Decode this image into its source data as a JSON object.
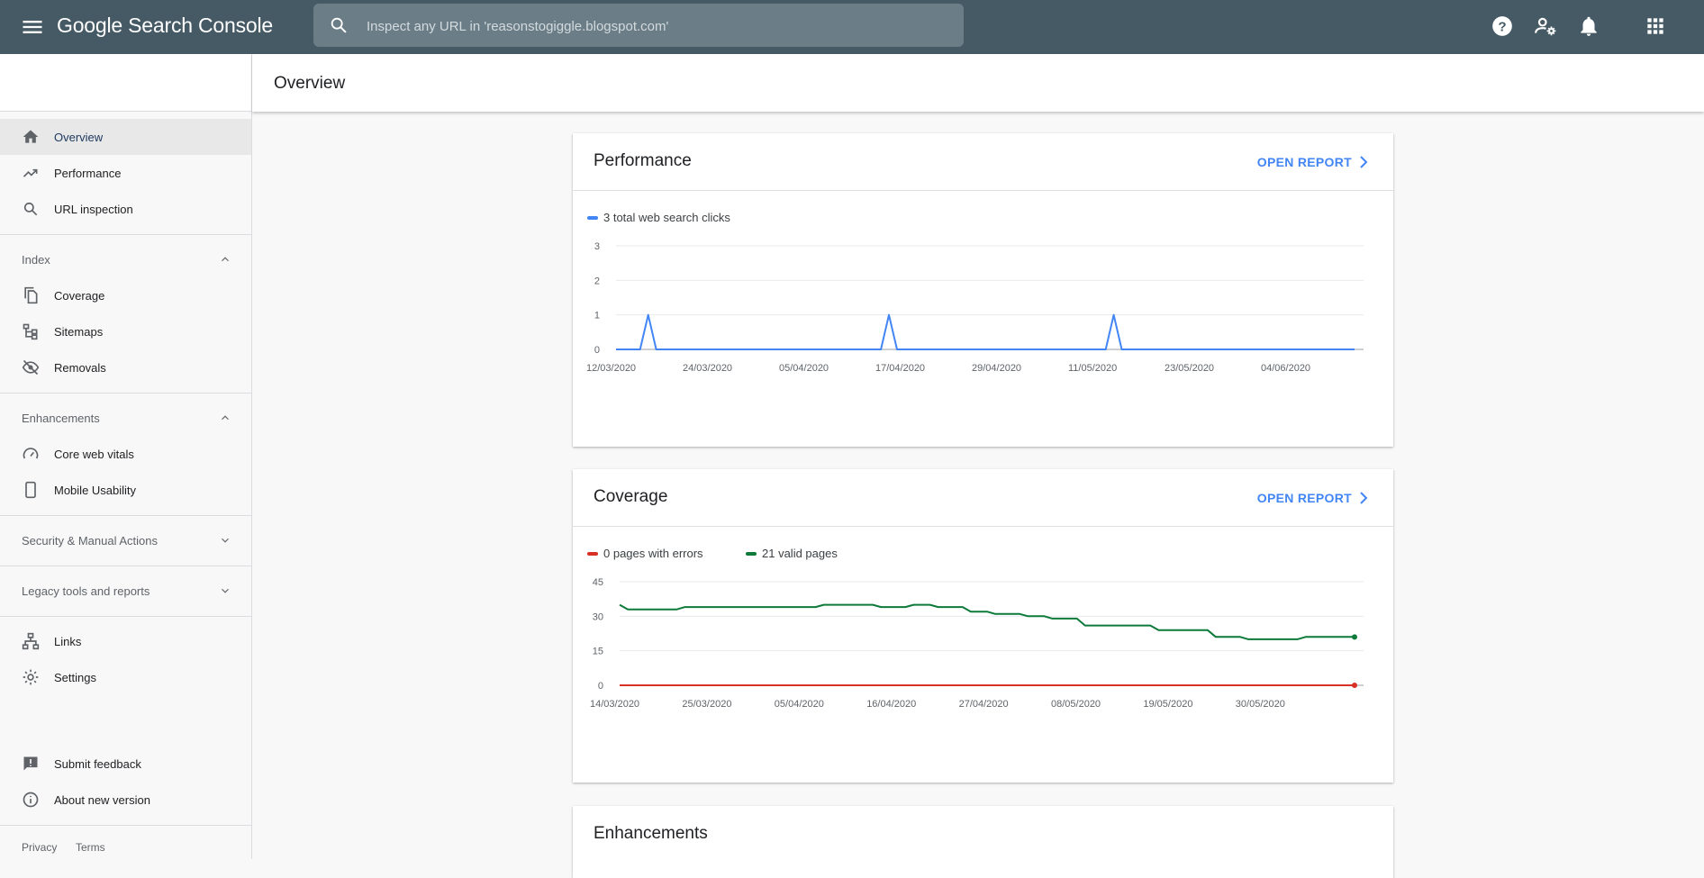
{
  "header": {
    "logo": "Google Search Console",
    "search_placeholder": "Inspect any URL in 'reasonstogiggle.blogspot.com'",
    "icons": [
      "menu-icon",
      "search-icon",
      "help-icon",
      "manage-users-icon",
      "notifications-icon",
      "apps-icon"
    ]
  },
  "sidebar": {
    "top_items": [
      {
        "label": "Overview",
        "icon": "home-icon",
        "active": true
      },
      {
        "label": "Performance",
        "icon": "trending-up-icon"
      },
      {
        "label": "URL inspection",
        "icon": "search-icon"
      }
    ],
    "index": {
      "label": "Index",
      "items": [
        {
          "label": "Coverage",
          "icon": "file-copy-icon"
        },
        {
          "label": "Sitemaps",
          "icon": "sitemap-icon"
        },
        {
          "label": "Removals",
          "icon": "visibility-off-icon"
        }
      ]
    },
    "enhancements": {
      "label": "Enhancements",
      "items": [
        {
          "label": "Core web vitals",
          "icon": "speed-icon"
        },
        {
          "label": "Mobile Usability",
          "icon": "smartphone-icon"
        }
      ]
    },
    "security_label": "Security & Manual Actions",
    "legacy_label": "Legacy tools and reports",
    "bottom_items": [
      {
        "label": "Links",
        "icon": "links-icon"
      },
      {
        "label": "Settings",
        "icon": "gear-icon"
      }
    ],
    "footer_items": [
      {
        "label": "Submit feedback",
        "icon": "feedback-icon"
      },
      {
        "label": "About new version",
        "icon": "info-icon"
      }
    ],
    "footer_links": [
      "Privacy",
      "Terms"
    ]
  },
  "page": {
    "title": "Overview"
  },
  "performance_card": {
    "title": "Performance",
    "open_report": "OPEN REPORT",
    "legend": [
      {
        "label": "3 total web search clicks",
        "color": "#4285f4"
      }
    ]
  },
  "coverage_card": {
    "title": "Coverage",
    "open_report": "OPEN REPORT",
    "legend": [
      {
        "label": "0 pages with errors",
        "color": "#d93025"
      },
      {
        "label": "21 valid pages",
        "color": "#0d7a3a"
      }
    ]
  },
  "enhancements_card": {
    "title": "Enhancements"
  },
  "chart_data": [
    {
      "type": "line",
      "title": "",
      "xlabel": "",
      "ylabel": "",
      "x_range": [
        "12/03/2020",
        "12/06/2020"
      ],
      "x_tick_labels": [
        "12/03/2020",
        "24/03/2020",
        "05/04/2020",
        "17/04/2020",
        "29/04/2020",
        "11/05/2020",
        "23/05/2020",
        "04/06/2020"
      ],
      "ylim": [
        0,
        3
      ],
      "y_ticks": [
        0,
        1,
        2,
        3
      ],
      "grid": true,
      "series": [
        {
          "name": "3 total web search clicks",
          "color": "#4285f4",
          "points": [
            [
              "12/03/2020",
              0
            ],
            [
              "15/03/2020",
              0
            ],
            [
              "16/03/2020",
              1
            ],
            [
              "17/03/2020",
              0
            ],
            [
              "14/04/2020",
              0
            ],
            [
              "15/04/2020",
              1
            ],
            [
              "16/04/2020",
              0
            ],
            [
              "12/05/2020",
              0
            ],
            [
              "13/05/2020",
              1
            ],
            [
              "14/05/2020",
              0
            ],
            [
              "12/06/2020",
              0
            ]
          ]
        }
      ]
    },
    {
      "type": "line",
      "title": "",
      "xlabel": "",
      "ylabel": "",
      "x_range": [
        "14/03/2020",
        "12/06/2020"
      ],
      "x_tick_labels": [
        "14/03/2020",
        "25/03/2020",
        "05/04/2020",
        "16/04/2020",
        "27/04/2020",
        "08/05/2020",
        "19/05/2020",
        "30/05/2020"
      ],
      "ylim": [
        0,
        45
      ],
      "y_ticks": [
        0,
        15,
        30,
        45
      ],
      "grid": true,
      "series": [
        {
          "name": "0 pages with errors",
          "color": "#d93025",
          "points": [
            [
              "14/03/2020",
              0
            ],
            [
              "12/06/2020",
              0
            ]
          ]
        },
        {
          "name": "21 valid pages",
          "color": "#0d7a3a",
          "points": [
            [
              "14/03/2020",
              35
            ],
            [
              "15/03/2020",
              33
            ],
            [
              "21/03/2020",
              33
            ],
            [
              "22/03/2020",
              34
            ],
            [
              "07/04/2020",
              34
            ],
            [
              "08/04/2020",
              35
            ],
            [
              "14/04/2020",
              35
            ],
            [
              "15/04/2020",
              34
            ],
            [
              "18/04/2020",
              34
            ],
            [
              "19/04/2020",
              35
            ],
            [
              "21/04/2020",
              35
            ],
            [
              "22/04/2020",
              34
            ],
            [
              "25/04/2020",
              34
            ],
            [
              "26/04/2020",
              32
            ],
            [
              "28/04/2020",
              32
            ],
            [
              "29/04/2020",
              31
            ],
            [
              "02/05/2020",
              31
            ],
            [
              "03/05/2020",
              30
            ],
            [
              "05/05/2020",
              30
            ],
            [
              "06/05/2020",
              29
            ],
            [
              "09/05/2020",
              29
            ],
            [
              "10/05/2020",
              26
            ],
            [
              "18/05/2020",
              26
            ],
            [
              "19/05/2020",
              24
            ],
            [
              "25/05/2020",
              24
            ],
            [
              "26/05/2020",
              21
            ],
            [
              "29/05/2020",
              21
            ],
            [
              "30/05/2020",
              20
            ],
            [
              "05/06/2020",
              20
            ],
            [
              "06/06/2020",
              21
            ],
            [
              "12/06/2020",
              21
            ]
          ]
        }
      ]
    }
  ]
}
